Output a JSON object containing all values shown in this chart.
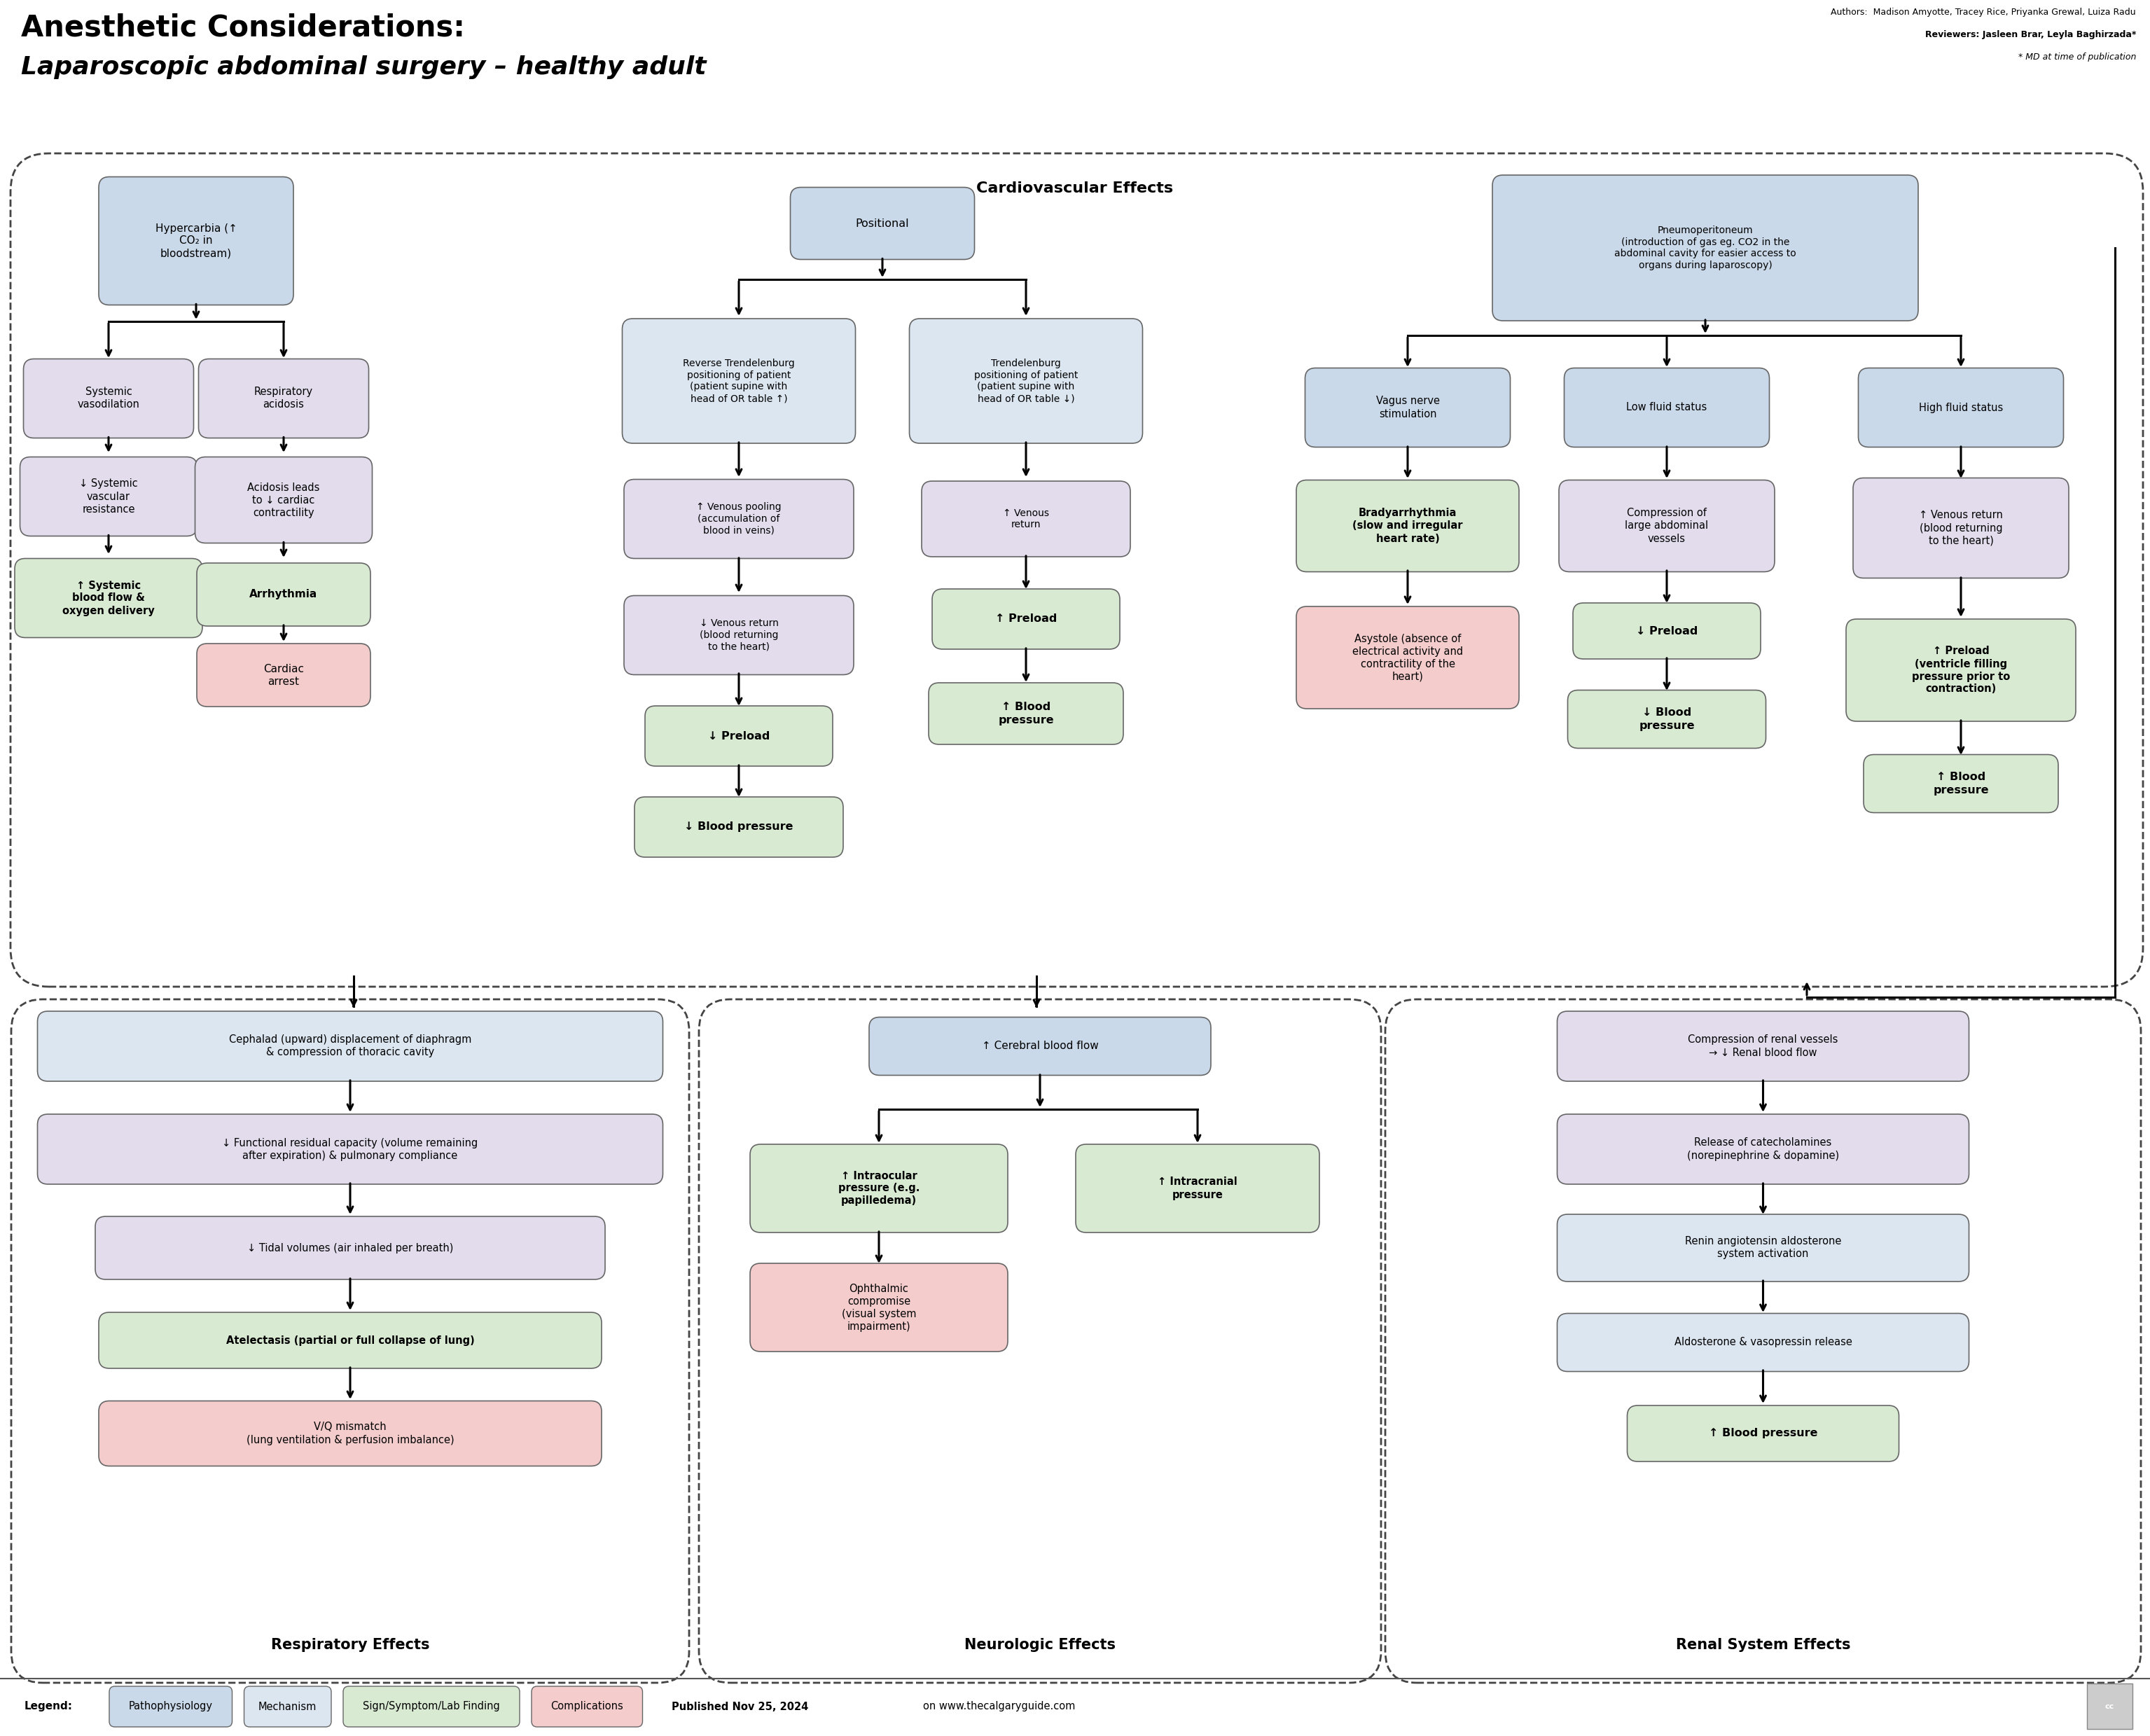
{
  "title1": "Anesthetic Considerations:",
  "title2": "Laparoscopic abdominal surgery – healthy adult",
  "authors_line1": "Authors:  Madison Amyotte, Tracey Rice, Priyanka Grewal, Luiza Radu",
  "authors_line2": "Reviewers: Jasleen Brar, Leyla Baghirzada*",
  "authors_line3": "* MD at time of publication",
  "published": "Published Nov 25, 2024",
  "website": "on www.thecalgaryguide.com",
  "bg_color": "#ffffff",
  "C_BLUE": "#c9d9ea",
  "C_LBLUE": "#dce6f1",
  "C_PURPLE": "#e2dced",
  "C_GREEN": "#d9ead3",
  "C_PINK": "#f4cccc",
  "legend_pathophys_color": "#c9d9ea",
  "legend_mechanism_color": "#dce6f1",
  "legend_sign_color": "#d9ead3",
  "legend_complication_color": "#f4cccc"
}
